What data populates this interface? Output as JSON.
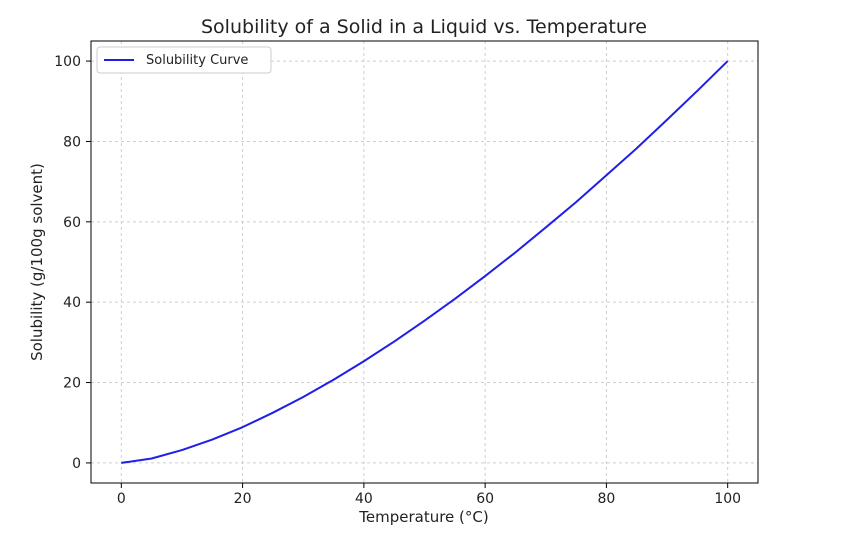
{
  "chart_data": {
    "type": "line",
    "title": "Solubility of a Solid in a Liquid vs. Temperature",
    "xlabel": "Temperature (°C)",
    "ylabel": "Solubility (g/100g solvent)",
    "xlim": [
      -5,
      105
    ],
    "ylim": [
      -5,
      105
    ],
    "xticks": [
      0,
      20,
      40,
      60,
      80,
      100
    ],
    "yticks": [
      0,
      20,
      40,
      60,
      80,
      100
    ],
    "grid": true,
    "legend_position": "top-left",
    "series": [
      {
        "name": "Solubility Curve",
        "color": "#1f1fe8",
        "x": [
          0,
          5,
          10,
          15,
          20,
          25,
          30,
          35,
          40,
          45,
          50,
          55,
          60,
          65,
          70,
          75,
          80,
          85,
          90,
          95,
          100
        ],
        "y": [
          0,
          1.1,
          3.2,
          5.8,
          8.9,
          12.5,
          16.4,
          20.7,
          25.3,
          30.2,
          35.4,
          40.8,
          46.5,
          52.4,
          58.6,
          64.9,
          71.6,
          78.3,
          85.4,
          92.6,
          100
        ]
      }
    ]
  }
}
